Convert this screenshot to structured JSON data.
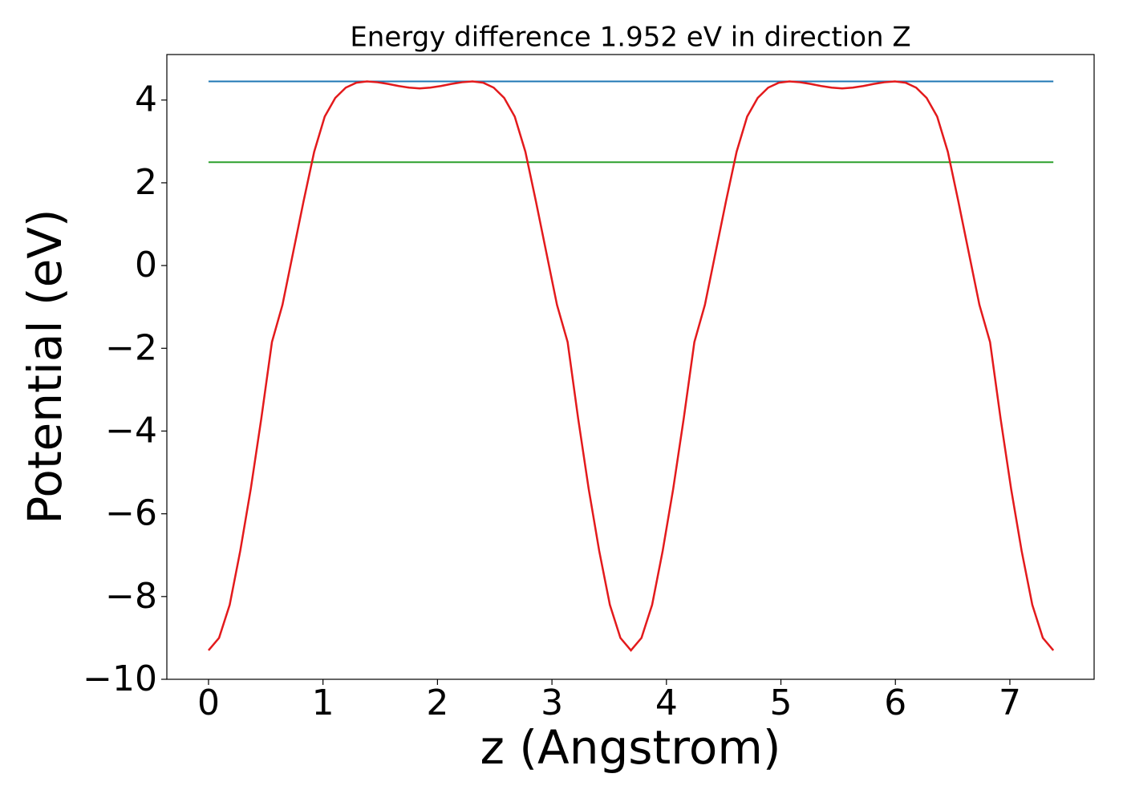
{
  "chart_data": {
    "type": "line",
    "title": "Energy difference 1.952 eV in direction Z",
    "xlabel": "z (Angstrom)",
    "ylabel": "Potential (eV)",
    "x": [
      0,
      0.092,
      0.185,
      0.277,
      0.369,
      0.461,
      0.554,
      0.646,
      0.738,
      0.83,
      0.923,
      1.015,
      1.107,
      1.199,
      1.292,
      1.384,
      1.476,
      1.568,
      1.661,
      1.753,
      1.845,
      1.937,
      2.03,
      2.122,
      2.214,
      2.306,
      2.399,
      2.491,
      2.583,
      2.675,
      2.768,
      2.86,
      2.952,
      3.044,
      3.137,
      3.229,
      3.321,
      3.413,
      3.506,
      3.598,
      3.69,
      3.782,
      3.875,
      3.967,
      4.059,
      4.151,
      4.244,
      4.336,
      4.428,
      4.52,
      4.613,
      4.705,
      4.797,
      4.889,
      4.982,
      5.074,
      5.166,
      5.258,
      5.351,
      5.443,
      5.535,
      5.627,
      5.72,
      5.812,
      5.904,
      5.996,
      6.089,
      6.181,
      6.273,
      6.365,
      6.458,
      6.55,
      6.642,
      6.734,
      6.827,
      6.919,
      7.011,
      7.103,
      7.196,
      7.288,
      7.38
    ],
    "series": [
      {
        "color": "#1f77b4",
        "x": [
          0,
          7.38
        ],
        "values": [
          4.45,
          4.45
        ]
      },
      {
        "color": "#2ca02c",
        "x": [
          0,
          7.38
        ],
        "values": [
          2.498,
          2.498
        ]
      },
      {
        "color": "#e31a1c",
        "values": [
          -9.3,
          -9.0,
          -8.2,
          -6.9,
          -5.4,
          -3.7,
          -1.85,
          -0.95,
          0.3,
          1.55,
          2.75,
          3.6,
          4.05,
          4.3,
          4.42,
          4.45,
          4.43,
          4.39,
          4.34,
          4.3,
          4.28,
          4.3,
          4.34,
          4.39,
          4.43,
          4.45,
          4.42,
          4.3,
          4.05,
          3.6,
          2.75,
          1.55,
          0.3,
          -0.95,
          -1.85,
          -3.7,
          -5.4,
          -6.9,
          -8.2,
          -9.0,
          -9.3,
          -9.0,
          -8.2,
          -6.9,
          -5.4,
          -3.7,
          -1.85,
          -0.95,
          0.3,
          1.55,
          2.75,
          3.6,
          4.05,
          4.3,
          4.42,
          4.45,
          4.43,
          4.39,
          4.34,
          4.3,
          4.28,
          4.3,
          4.34,
          4.39,
          4.43,
          4.45,
          4.42,
          4.3,
          4.05,
          3.6,
          2.75,
          1.55,
          0.3,
          -0.95,
          -1.85,
          -3.7,
          -5.4,
          -6.9,
          -8.2,
          -9.0,
          -9.3
        ]
      }
    ],
    "xlim": [
      -0.364,
      7.736
    ],
    "ylim": [
      -10,
      5.1
    ],
    "xticks": [
      0,
      1,
      2,
      3,
      4,
      5,
      6,
      7
    ],
    "yticks": [
      {
        "value": -10,
        "label": "−10"
      },
      {
        "value": -8,
        "label": "−8"
      },
      {
        "value": -6,
        "label": "−6"
      },
      {
        "value": -4,
        "label": "−4"
      },
      {
        "value": -2,
        "label": "−2"
      },
      0,
      2,
      4
    ],
    "grid": false
  }
}
